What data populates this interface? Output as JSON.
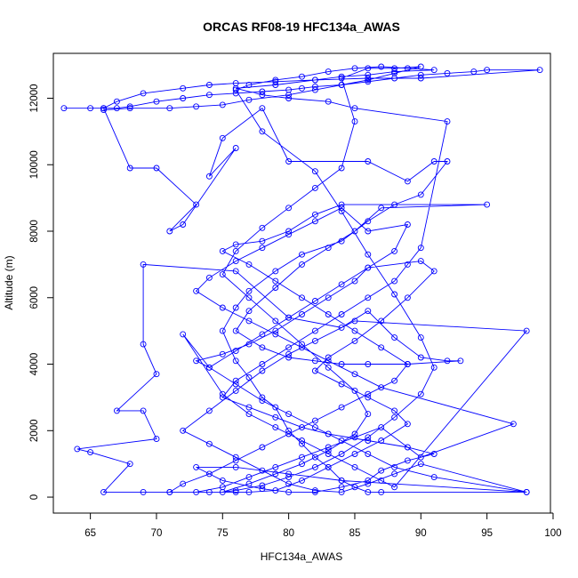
{
  "chart_data": {
    "type": "line",
    "title": "ORCAS RF08-19 HFC134a_AWAS",
    "xlabel": "HFC134a_AWAS",
    "ylabel": "Altitude (m)",
    "xlim": [
      62.2,
      99.8
    ],
    "ylim": [
      -480,
      13350
    ],
    "xticks": [
      65,
      70,
      75,
      80,
      85,
      90,
      95,
      100
    ],
    "yticks": [
      0,
      2000,
      4000,
      6000,
      8000,
      10000,
      12000
    ],
    "line_color": "#0000ff",
    "marker": "open-circle",
    "grid": false,
    "legend": "none",
    "series": [
      {
        "values": [
          [
            66,
            11700
          ],
          [
            63,
            11700
          ],
          [
            65,
            11700
          ],
          [
            67,
            11700
          ],
          [
            68,
            11750
          ],
          [
            70,
            11900
          ],
          [
            72,
            12000
          ],
          [
            74,
            12100
          ],
          [
            76,
            12150
          ],
          [
            78,
            12200
          ],
          [
            80,
            12250
          ],
          [
            81,
            12300
          ],
          [
            82,
            12350
          ],
          [
            84,
            12400
          ],
          [
            86,
            12500
          ],
          [
            88,
            12600
          ],
          [
            90,
            12700
          ],
          [
            92,
            12750
          ],
          [
            94,
            12800
          ],
          [
            95,
            12850
          ],
          [
            99,
            12850
          ],
          [
            90,
            12600
          ],
          [
            86,
            12600
          ],
          [
            82,
            12550
          ],
          [
            79,
            12500
          ],
          [
            76,
            12450
          ],
          [
            74,
            12400
          ],
          [
            72,
            12300
          ],
          [
            69,
            12150
          ],
          [
            67,
            11900
          ],
          [
            66,
            11700
          ],
          [
            68,
            9900
          ],
          [
            70,
            9900
          ],
          [
            73,
            8800
          ],
          [
            71,
            8000
          ],
          [
            72,
            8200
          ],
          [
            76,
            10500
          ],
          [
            74,
            9650
          ],
          [
            75,
            10800
          ],
          [
            78,
            11700
          ],
          [
            80,
            10100
          ],
          [
            86,
            10100
          ],
          [
            89,
            9500
          ],
          [
            91,
            10100
          ],
          [
            92,
            10100
          ],
          [
            90,
            9100
          ],
          [
            88,
            8800
          ],
          [
            86,
            8300
          ],
          [
            84,
            7700
          ],
          [
            81,
            7300
          ],
          [
            79,
            6800
          ],
          [
            77,
            6200
          ],
          [
            76,
            5700
          ],
          [
            75,
            5000
          ],
          [
            76,
            4100
          ],
          [
            77,
            3600
          ],
          [
            78,
            3000
          ],
          [
            79,
            2700
          ],
          [
            80,
            2000
          ],
          [
            81,
            1600
          ],
          [
            82,
            1200
          ],
          [
            83,
            900
          ],
          [
            84,
            500
          ],
          [
            85,
            300
          ],
          [
            86,
            150
          ],
          [
            87,
            150
          ],
          [
            98,
            150
          ],
          [
            91,
            600
          ],
          [
            88,
            900
          ],
          [
            86,
            1300
          ],
          [
            84,
            1700
          ],
          [
            82,
            2100
          ],
          [
            80,
            2500
          ],
          [
            78,
            2900
          ],
          [
            76,
            3400
          ],
          [
            74,
            3900
          ],
          [
            73,
            4100
          ],
          [
            75,
            4300
          ],
          [
            77,
            4600
          ],
          [
            79,
            5000
          ],
          [
            81,
            5500
          ],
          [
            83,
            6000
          ],
          [
            85,
            6500
          ],
          [
            86,
            6900
          ],
          [
            90,
            7100
          ],
          [
            91,
            6800
          ],
          [
            89,
            6000
          ],
          [
            87,
            5300
          ],
          [
            85,
            4700
          ],
          [
            83,
            4200
          ],
          [
            82,
            3800
          ],
          [
            84,
            3400
          ],
          [
            86,
            3000
          ],
          [
            88,
            2600
          ],
          [
            89,
            2200
          ],
          [
            87,
            1700
          ],
          [
            85,
            1300
          ],
          [
            83,
            900
          ],
          [
            81,
            500
          ],
          [
            79,
            200
          ],
          [
            77,
            150
          ],
          [
            76,
            150
          ],
          [
            74,
            150
          ],
          [
            71,
            150
          ],
          [
            69,
            150
          ],
          [
            66,
            150
          ],
          [
            68,
            1000
          ],
          [
            65,
            1350
          ],
          [
            64,
            1450
          ],
          [
            70,
            1750
          ],
          [
            69,
            2600
          ],
          [
            67,
            2600
          ],
          [
            70,
            3700
          ],
          [
            69,
            4600
          ],
          [
            69,
            7000
          ],
          [
            76,
            6800
          ],
          [
            80,
            5400
          ],
          [
            84,
            5100
          ],
          [
            86,
            5600
          ],
          [
            88,
            4800
          ],
          [
            90,
            4200
          ],
          [
            92,
            4100
          ],
          [
            93,
            4100
          ],
          [
            89,
            4000
          ],
          [
            86,
            4000
          ],
          [
            84,
            4000
          ],
          [
            82,
            4100
          ],
          [
            80,
            4200
          ],
          [
            78,
            4500
          ],
          [
            76,
            5000
          ],
          [
            77,
            5600
          ],
          [
            79,
            6300
          ],
          [
            81,
            7000
          ],
          [
            83,
            7500
          ],
          [
            85,
            8000
          ],
          [
            87,
            8700
          ],
          [
            95,
            8800
          ],
          [
            84,
            8800
          ],
          [
            82,
            8500
          ],
          [
            80,
            8000
          ],
          [
            78,
            7700
          ],
          [
            76,
            7600
          ],
          [
            75,
            7400
          ],
          [
            77,
            7000
          ],
          [
            79,
            6500
          ],
          [
            81,
            6000
          ],
          [
            83,
            5500
          ],
          [
            85,
            5000
          ],
          [
            87,
            4500
          ],
          [
            89,
            4000
          ],
          [
            88,
            3500
          ],
          [
            86,
            3100
          ],
          [
            84,
            2700
          ],
          [
            82,
            2300
          ],
          [
            80,
            1900
          ],
          [
            78,
            1500
          ],
          [
            76,
            1100
          ],
          [
            74,
            700
          ],
          [
            72,
            400
          ],
          [
            71,
            150
          ],
          [
            73,
            150
          ],
          [
            75,
            300
          ],
          [
            77,
            600
          ],
          [
            79,
            900
          ],
          [
            81,
            1200
          ],
          [
            83,
            1500
          ],
          [
            85,
            1800
          ],
          [
            87,
            2100
          ],
          [
            90,
            1200
          ],
          [
            97,
            2200
          ],
          [
            87,
            3300
          ],
          [
            85,
            3700
          ],
          [
            83,
            4100
          ],
          [
            81,
            4500
          ],
          [
            79,
            4900
          ],
          [
            77,
            5300
          ],
          [
            75,
            5700
          ],
          [
            73,
            6200
          ],
          [
            74,
            6600
          ],
          [
            76,
            7100
          ],
          [
            78,
            7500
          ],
          [
            80,
            7900
          ],
          [
            82,
            8300
          ],
          [
            84,
            8700
          ],
          [
            86,
            8000
          ],
          [
            89,
            8200
          ],
          [
            88,
            7400
          ],
          [
            86,
            6900
          ],
          [
            84,
            6400
          ],
          [
            82,
            5900
          ],
          [
            80,
            5400
          ],
          [
            78,
            4900
          ],
          [
            76,
            4400
          ],
          [
            74,
            3900
          ],
          [
            72,
            4900
          ],
          [
            75,
            3100
          ],
          [
            77,
            2500
          ],
          [
            79,
            2100
          ],
          [
            81,
            1700
          ],
          [
            83,
            1300
          ],
          [
            85,
            900
          ],
          [
            87,
            500
          ],
          [
            88,
            300
          ],
          [
            98,
            5000
          ],
          [
            85,
            5300
          ],
          [
            82,
            4700
          ],
          [
            80,
            4300
          ],
          [
            78,
            3800
          ],
          [
            76,
            3200
          ],
          [
            74,
            2600
          ],
          [
            72,
            2000
          ],
          [
            74,
            1600
          ],
          [
            76,
            1200
          ],
          [
            78,
            800
          ],
          [
            80,
            400
          ],
          [
            82,
            200
          ],
          [
            84,
            150
          ],
          [
            86,
            400
          ],
          [
            88,
            700
          ],
          [
            90,
            1000
          ],
          [
            98,
            150
          ],
          [
            84,
            500
          ],
          [
            80,
            700
          ],
          [
            76,
            900
          ],
          [
            73,
            900
          ],
          [
            75,
            500
          ],
          [
            78,
            250
          ],
          [
            80,
            150
          ],
          [
            82,
            150
          ],
          [
            84,
            300
          ],
          [
            86,
            500
          ],
          [
            87,
            800
          ],
          [
            89,
            1100
          ],
          [
            91,
            1300
          ],
          [
            89,
            1500
          ],
          [
            86,
            1700
          ],
          [
            83,
            1900
          ],
          [
            81,
            2100
          ],
          [
            79,
            2400
          ],
          [
            77,
            2700
          ],
          [
            75,
            3000
          ],
          [
            76,
            3500
          ],
          [
            78,
            4000
          ],
          [
            80,
            4500
          ],
          [
            82,
            5000
          ],
          [
            84,
            5500
          ],
          [
            86,
            6000
          ],
          [
            88,
            6500
          ],
          [
            89,
            7000
          ],
          [
            90,
            7500
          ],
          [
            92,
            11300
          ],
          [
            85,
            11700
          ],
          [
            83,
            11900
          ],
          [
            80,
            12000
          ],
          [
            78,
            12100
          ],
          [
            76,
            12300
          ],
          [
            79,
            12400
          ],
          [
            82,
            12550
          ],
          [
            84,
            12650
          ],
          [
            86,
            12700
          ],
          [
            88,
            12800
          ],
          [
            91,
            12850
          ],
          [
            89,
            12900
          ],
          [
            87,
            12950
          ],
          [
            85,
            12900
          ],
          [
            83,
            12800
          ],
          [
            81,
            12650
          ],
          [
            79,
            12550
          ],
          [
            77,
            12400
          ],
          [
            76,
            12250
          ],
          [
            78,
            11000
          ],
          [
            82,
            9800
          ],
          [
            84,
            8600
          ],
          [
            86,
            7300
          ],
          [
            88,
            6100
          ],
          [
            90,
            4800
          ],
          [
            91,
            3900
          ],
          [
            90,
            3100
          ],
          [
            88,
            2400
          ],
          [
            86,
            1800
          ],
          [
            84,
            1300
          ],
          [
            82,
            900
          ],
          [
            80,
            600
          ],
          [
            78,
            350
          ],
          [
            76,
            200
          ],
          [
            75,
            150
          ],
          [
            77,
            400
          ],
          [
            79,
            700
          ],
          [
            81,
            1000
          ],
          [
            83,
            1400
          ],
          [
            85,
            1900
          ],
          [
            86,
            2500
          ],
          [
            85,
            3200
          ],
          [
            83,
            3900
          ],
          [
            81,
            4600
          ],
          [
            79,
            5300
          ],
          [
            77,
            6000
          ],
          [
            75,
            6700
          ],
          [
            76,
            7400
          ],
          [
            78,
            8100
          ],
          [
            80,
            8700
          ],
          [
            82,
            9300
          ],
          [
            84,
            9900
          ],
          [
            85,
            11300
          ],
          [
            84,
            12600
          ],
          [
            86,
            12900
          ],
          [
            88,
            12900
          ],
          [
            90,
            12950
          ],
          [
            88,
            12750
          ],
          [
            86,
            12550
          ],
          [
            84,
            12400
          ],
          [
            82,
            12250
          ],
          [
            80,
            12100
          ],
          [
            77,
            11950
          ],
          [
            75,
            11800
          ],
          [
            73,
            11750
          ],
          [
            71,
            11700
          ],
          [
            68,
            11700
          ],
          [
            66,
            11650
          ]
        ]
      }
    ]
  }
}
